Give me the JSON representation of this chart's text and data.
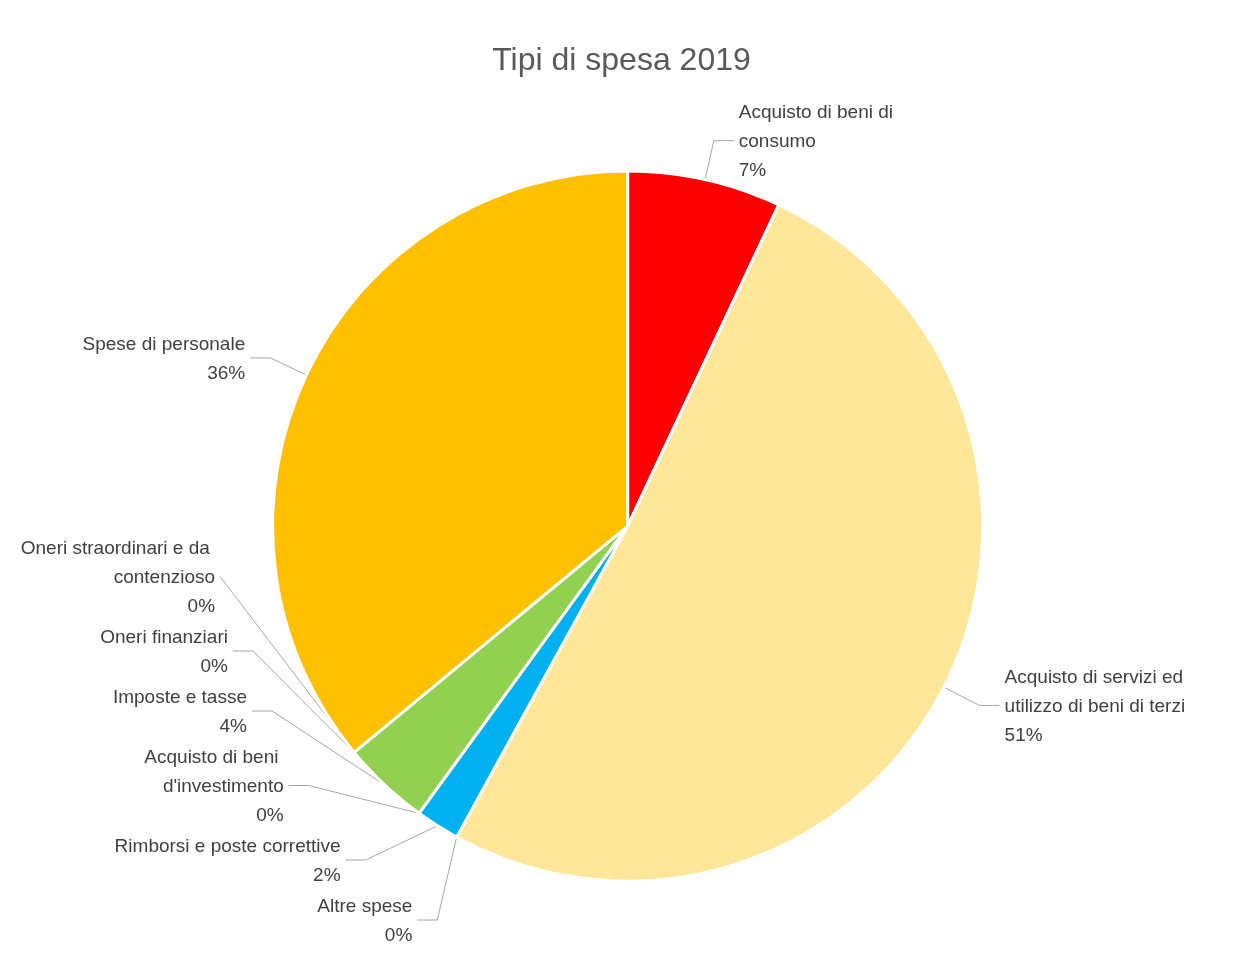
{
  "chart_data": {
    "type": "pie",
    "title": "Tipi di spesa 2019",
    "categories": [
      "Acquisto di beni di consumo",
      "Acquisto di servizi ed utilizzo di beni di terzi",
      "Altre spese",
      "Rimborsi e poste correttive",
      "Acquisto di beni d'investimento",
      "Imposte e tasse",
      "Oneri straordinari e da contenzioso",
      "Oneri finanziari",
      "Spese di personale"
    ],
    "values": [
      7,
      51,
      0,
      2,
      0,
      4,
      0,
      0,
      36
    ],
    "colors": [
      "#ff0000",
      "#ffe699",
      "#a5a5a5",
      "#00b0f0",
      "#4472c4",
      "#92d050",
      "#843c0c",
      "#7030a0",
      "#ffc000"
    ],
    "value_labels": [
      "7%",
      "51%",
      "0%",
      "2%",
      "0%",
      "4%",
      "0%",
      "0%",
      "36%"
    ],
    "legend": false
  }
}
